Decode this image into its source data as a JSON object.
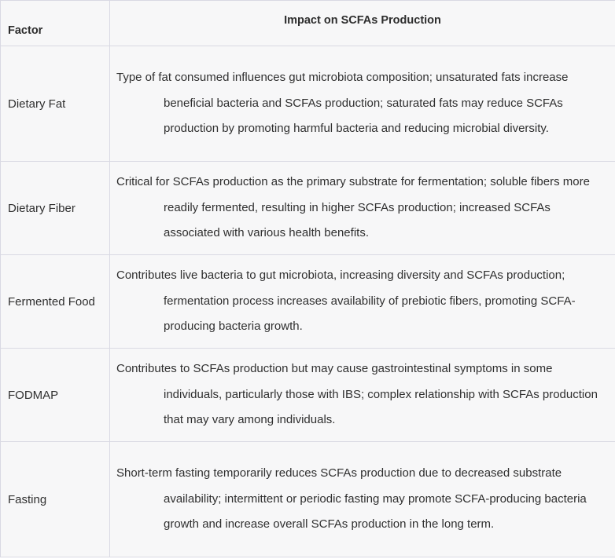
{
  "table": {
    "headers": {
      "factor": "Factor",
      "impact": "Impact on SCFAs Production"
    },
    "rows": [
      {
        "factor": "Dietary Fat",
        "impact": "Type of fat consumed influences gut microbiota composition; unsaturated fats increase beneficial bacteria and SCFAs production; saturated fats may reduce SCFAs production by promoting harmful bacteria and reducing microbial diversity."
      },
      {
        "factor": "Dietary Fiber",
        "impact": "Critical for SCFAs production as the primary substrate for fermentation; soluble fibers more readily fermented, resulting in higher SCFAs production; increased SCFAs associated with various health benefits."
      },
      {
        "factor": "Fermented Food",
        "impact": "Contributes live bacteria to gut microbiota, increasing diversity and SCFAs production; fermentation process increases availability of prebiotic fibers, promoting SCFA-producing bacteria growth."
      },
      {
        "factor": "FODMAP",
        "impact": "Contributes to SCFAs production but may cause gastrointestinal symptoms in some individuals, particularly those with IBS; complex relationship with SCFAs production that may vary among individuals."
      },
      {
        "factor": "Fasting",
        "impact": "Short-term fasting temporarily reduces SCFAs production due to decreased substrate availability; intermittent or periodic fasting may promote SCFA-producing bacteria growth and increase overall SCFAs production in the long term."
      }
    ]
  }
}
